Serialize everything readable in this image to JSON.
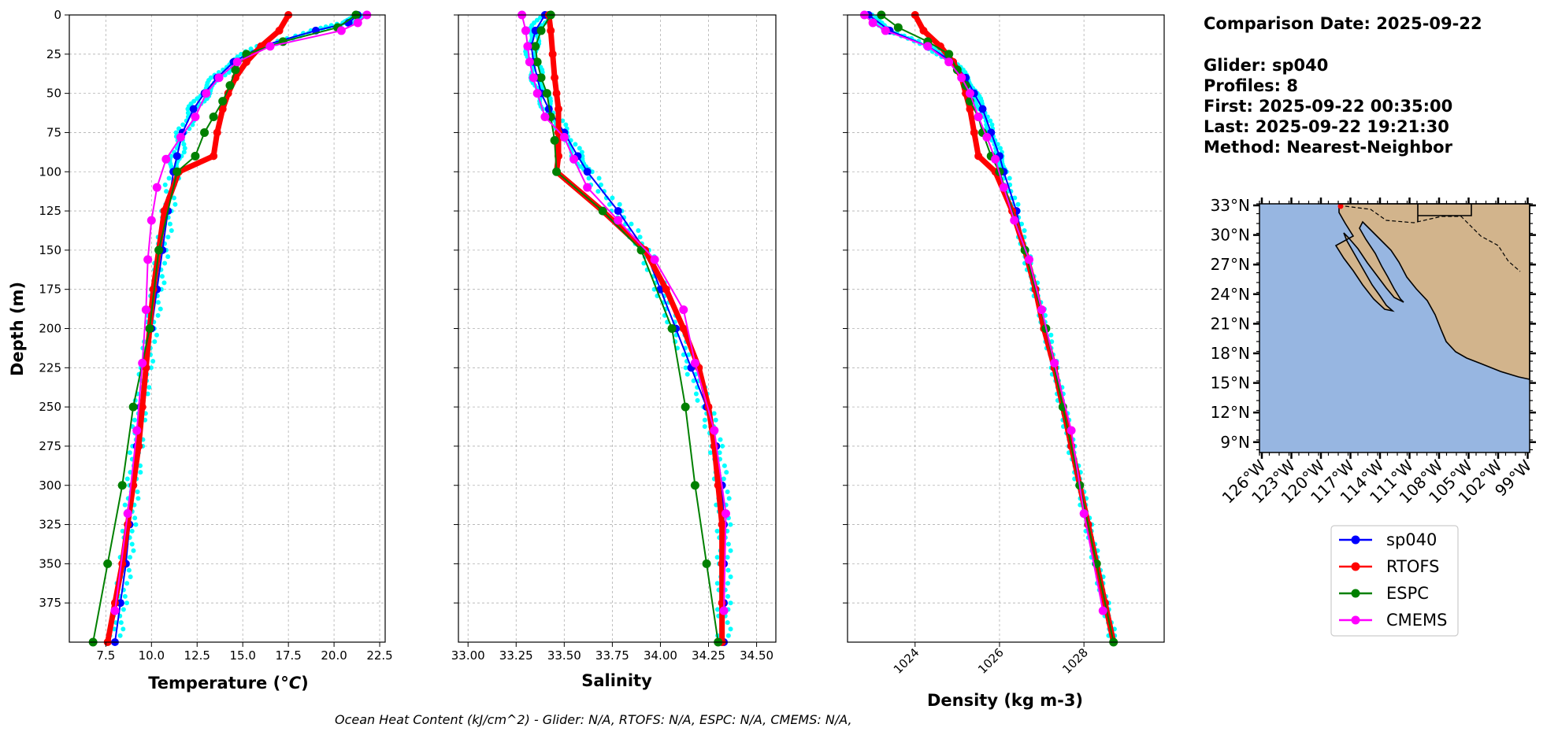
{
  "info": {
    "comparison_date": "Comparison Date: 2025-09-22",
    "glider": "Glider: sp040",
    "profiles": "Profiles: 8",
    "first": "First: 2025-09-22 00:35:00",
    "last": "Last: 2025-09-22 19:21:30",
    "method": "Method: Nearest-Neighbor"
  },
  "footer": "Ocean Heat Content (kJ/cm^2) - Glider: N/A,  RTOFS: N/A,  ESPC: N/A,  CMEMS: N/A,",
  "colors": {
    "sp040": "#0000ff",
    "rtofs": "#ff0000",
    "espc": "#008000",
    "cmems": "#ff00ff",
    "glider_raw": "#00ffff",
    "ocean": "#97b6e1",
    "land": "#d2b48c"
  },
  "chart_data": [
    {
      "type": "line",
      "id": "temperature",
      "xlabel": "Temperature (°C)",
      "ylabel": "Depth (m)",
      "xlim": [
        5.5,
        22.8
      ],
      "ylim": [
        400,
        0
      ],
      "xticks": [
        "7.5",
        "10.0",
        "12.5",
        "15.0",
        "17.5",
        "20.0",
        "22.5"
      ],
      "xtick_values": [
        7.5,
        10,
        12.5,
        15,
        17.5,
        20,
        22.5
      ],
      "yticks": [
        "0",
        "25",
        "50",
        "75",
        "100",
        "125",
        "150",
        "175",
        "200",
        "225",
        "250",
        "275",
        "300",
        "325",
        "350",
        "375"
      ],
      "ytick_values": [
        0,
        25,
        50,
        75,
        100,
        125,
        150,
        175,
        200,
        225,
        250,
        275,
        300,
        325,
        350,
        375
      ],
      "grid": true,
      "series": [
        {
          "name": "sp040",
          "depth": [
            0,
            5,
            10,
            20,
            30,
            40,
            50,
            60,
            75,
            90,
            100,
            125,
            150,
            175,
            200,
            225,
            250,
            275,
            300,
            325,
            350,
            375,
            400
          ],
          "values": [
            21.3,
            20.8,
            19.0,
            16.0,
            14.5,
            13.6,
            12.9,
            12.3,
            11.7,
            11.4,
            11.2,
            10.9,
            10.6,
            10.3,
            10.0,
            9.7,
            9.4,
            9.2,
            9.0,
            8.8,
            8.6,
            8.3,
            8.0
          ]
        },
        {
          "name": "RTOFS",
          "depth": [
            0,
            10,
            20,
            30,
            40,
            50,
            60,
            75,
            90,
            100,
            125,
            150,
            175,
            200,
            225,
            250,
            275,
            300,
            325,
            350,
            375,
            400
          ],
          "values": [
            17.5,
            17.0,
            16.0,
            15.2,
            14.6,
            14.2,
            13.9,
            13.6,
            13.4,
            11.5,
            10.7,
            10.4,
            10.1,
            9.9,
            9.7,
            9.5,
            9.3,
            9.0,
            8.7,
            8.4,
            8.0,
            7.6
          ]
        },
        {
          "name": "ESPC",
          "depth": [
            0,
            8,
            17,
            25,
            35,
            45,
            55,
            65,
            75,
            90,
            100,
            150,
            200,
            250,
            300,
            350,
            400
          ],
          "values": [
            21.2,
            20.2,
            17.2,
            15.2,
            14.6,
            14.3,
            13.9,
            13.4,
            12.9,
            12.4,
            11.4,
            10.4,
            9.9,
            9.0,
            8.4,
            7.6,
            6.8
          ]
        },
        {
          "name": "CMEMS",
          "depth": [
            0,
            5,
            10,
            20,
            30,
            40,
            50,
            65,
            78,
            92,
            110,
            131,
            156,
            188,
            222,
            265,
            318,
            380
          ],
          "values": [
            21.8,
            21.3,
            20.4,
            16.5,
            14.7,
            13.7,
            13.0,
            12.4,
            11.6,
            10.8,
            10.3,
            10.0,
            9.8,
            9.7,
            9.5,
            9.2,
            8.7,
            8.0
          ]
        }
      ]
    },
    {
      "type": "line",
      "id": "salinity",
      "xlabel": "Salinity",
      "ylim": [
        400,
        0
      ],
      "xlim": [
        32.95,
        34.6
      ],
      "xticks": [
        "33.00",
        "33.25",
        "33.50",
        "33.75",
        "34.00",
        "34.25",
        "34.50"
      ],
      "xtick_values": [
        33.0,
        33.25,
        33.5,
        33.75,
        34.0,
        34.25,
        34.5
      ],
      "grid": true,
      "series": [
        {
          "name": "sp040",
          "depth": [
            0,
            10,
            20,
            30,
            40,
            50,
            60,
            75,
            90,
            100,
            125,
            150,
            175,
            200,
            225,
            250,
            275,
            300,
            325,
            350,
            375,
            400
          ],
          "values": [
            33.4,
            33.35,
            33.33,
            33.34,
            33.36,
            33.38,
            33.42,
            33.5,
            33.57,
            33.62,
            33.78,
            33.92,
            34.0,
            34.08,
            34.16,
            34.24,
            34.29,
            34.32,
            34.33,
            34.33,
            34.33,
            34.33
          ]
        },
        {
          "name": "RTOFS",
          "depth": [
            0,
            10,
            25,
            40,
            50,
            60,
            75,
            90,
            100,
            125,
            150,
            175,
            200,
            225,
            250,
            275,
            300,
            325,
            350,
            375,
            400
          ],
          "values": [
            33.42,
            33.43,
            33.44,
            33.45,
            33.46,
            33.47,
            33.47,
            33.47,
            33.46,
            33.7,
            33.92,
            34.03,
            34.12,
            34.2,
            34.25,
            34.28,
            34.3,
            34.32,
            34.32,
            34.32,
            34.32
          ]
        },
        {
          "name": "ESPC",
          "depth": [
            0,
            10,
            20,
            30,
            40,
            50,
            65,
            80,
            100,
            125,
            150,
            200,
            250,
            300,
            350,
            400
          ],
          "values": [
            33.43,
            33.38,
            33.35,
            33.36,
            33.38,
            33.41,
            33.43,
            33.45,
            33.46,
            33.7,
            33.9,
            34.06,
            34.13,
            34.18,
            34.24,
            34.3
          ]
        },
        {
          "name": "CMEMS",
          "depth": [
            0,
            10,
            20,
            30,
            40,
            50,
            65,
            78,
            92,
            110,
            131,
            156,
            188,
            222,
            265,
            318,
            380
          ],
          "values": [
            33.28,
            33.3,
            33.31,
            33.32,
            33.34,
            33.36,
            33.4,
            33.5,
            33.55,
            33.62,
            33.78,
            33.97,
            34.12,
            34.18,
            34.28,
            34.34,
            34.33
          ]
        }
      ]
    },
    {
      "type": "line",
      "id": "density",
      "xlabel": "Density (kg m-3)",
      "ylim": [
        400,
        0
      ],
      "xlim": [
        1022.4,
        1029.9
      ],
      "xticks": [
        "1024",
        "1026",
        "1028"
      ],
      "xtick_values": [
        1024,
        1026,
        1028
      ],
      "grid": true,
      "series": [
        {
          "name": "sp040",
          "depth": [
            0,
            10,
            20,
            30,
            40,
            50,
            60,
            75,
            90,
            100,
            125,
            150,
            175,
            200,
            225,
            250,
            275,
            300,
            325,
            350,
            375,
            400
          ],
          "values": [
            1022.9,
            1023.4,
            1024.3,
            1024.9,
            1025.2,
            1025.4,
            1025.6,
            1025.8,
            1026.0,
            1026.1,
            1026.4,
            1026.6,
            1026.85,
            1027.1,
            1027.3,
            1027.5,
            1027.7,
            1027.9,
            1028.1,
            1028.3,
            1028.5,
            1028.7
          ]
        },
        {
          "name": "RTOFS",
          "depth": [
            0,
            10,
            20,
            30,
            40,
            50,
            60,
            75,
            90,
            100,
            125,
            150,
            175,
            200,
            225,
            250,
            275,
            300,
            325,
            350,
            375,
            400
          ],
          "values": [
            1024.0,
            1024.2,
            1024.6,
            1024.9,
            1025.1,
            1025.2,
            1025.3,
            1025.4,
            1025.5,
            1025.9,
            1026.3,
            1026.6,
            1026.85,
            1027.05,
            1027.3,
            1027.5,
            1027.7,
            1027.9,
            1028.1,
            1028.3,
            1028.5,
            1028.7
          ]
        },
        {
          "name": "ESPC",
          "depth": [
            0,
            8,
            17,
            25,
            35,
            45,
            55,
            65,
            75,
            90,
            100,
            150,
            200,
            250,
            300,
            350,
            400
          ],
          "values": [
            1023.2,
            1023.6,
            1024.3,
            1024.8,
            1025.0,
            1025.2,
            1025.3,
            1025.5,
            1025.6,
            1025.8,
            1026.0,
            1026.6,
            1027.1,
            1027.5,
            1027.9,
            1028.3,
            1028.7
          ]
        },
        {
          "name": "CMEMS",
          "depth": [
            0,
            5,
            10,
            20,
            30,
            40,
            50,
            65,
            78,
            92,
            110,
            131,
            156,
            188,
            222,
            265,
            318,
            380
          ],
          "values": [
            1022.8,
            1023.0,
            1023.3,
            1024.3,
            1024.8,
            1025.1,
            1025.3,
            1025.5,
            1025.7,
            1025.9,
            1026.1,
            1026.35,
            1026.7,
            1027.0,
            1027.3,
            1027.7,
            1028.0,
            1028.45
          ]
        }
      ]
    }
  ],
  "map": {
    "lat_ticks": [
      "33°N",
      "30°N",
      "27°N",
      "24°N",
      "21°N",
      "18°N",
      "15°N",
      "12°N",
      "9°N"
    ],
    "lon_ticks": [
      "126°W",
      "123°W",
      "120°W",
      "117°W",
      "114°W",
      "111°W",
      "108°W",
      "105°W",
      "102°W",
      "99°W"
    ]
  },
  "legend": {
    "entries": [
      "sp040",
      "RTOFS",
      "ESPC",
      "CMEMS"
    ]
  }
}
